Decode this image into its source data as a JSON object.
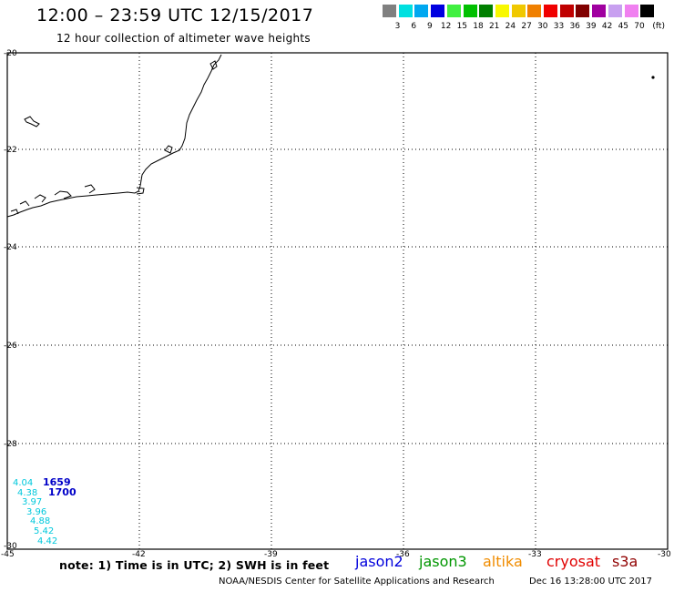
{
  "header": {
    "title": "12:00 – 23:59 UTC 12/15/2017",
    "subtitle": "12 hour collection of altimeter wave heights"
  },
  "legend": {
    "colors": [
      "#808080",
      "#00e0e0",
      "#00a8f0",
      "#0000e0",
      "#40f040",
      "#00c000",
      "#008000",
      "#f8f800",
      "#f0c800",
      "#f08000",
      "#f00000",
      "#c00000",
      "#800000",
      "#a000a0",
      "#c8a0f0",
      "#f080f0",
      "#000000"
    ],
    "labels": [
      "3",
      "6",
      "9",
      "12",
      "15",
      "18",
      "21",
      "24",
      "27",
      "30",
      "33",
      "36",
      "39",
      "42",
      "45",
      "70"
    ],
    "unit": "(ft)"
  },
  "map": {
    "lat_labels": [
      "-20",
      "-22",
      "-24",
      "-26",
      "-28",
      "-30"
    ],
    "lon_labels": [
      "-45",
      "-42",
      "-39",
      "-36",
      "-33",
      "-30"
    ]
  },
  "observations": {
    "wave_heights": [
      "4.04",
      "4.38",
      "3.97",
      "3.96",
      "4.88",
      "5.42",
      "4.42"
    ],
    "times": [
      "1659",
      "1700"
    ]
  },
  "footer": {
    "note": "note: 1) Time is in UTC; 2) SWH is in feet",
    "satellites": [
      {
        "name": "jason2",
        "color": "#0000dc"
      },
      {
        "name": "jason3",
        "color": "#009600"
      },
      {
        "name": "altika",
        "color": "#f08c00"
      },
      {
        "name": "cryosat",
        "color": "#e00000"
      },
      {
        "name": "s3a",
        "color": "#900000"
      }
    ],
    "credit": "NOAA/NESDIS Center for Satellite Applications and Research",
    "issued": "Dec 16 13:28:00 UTC 2017"
  }
}
